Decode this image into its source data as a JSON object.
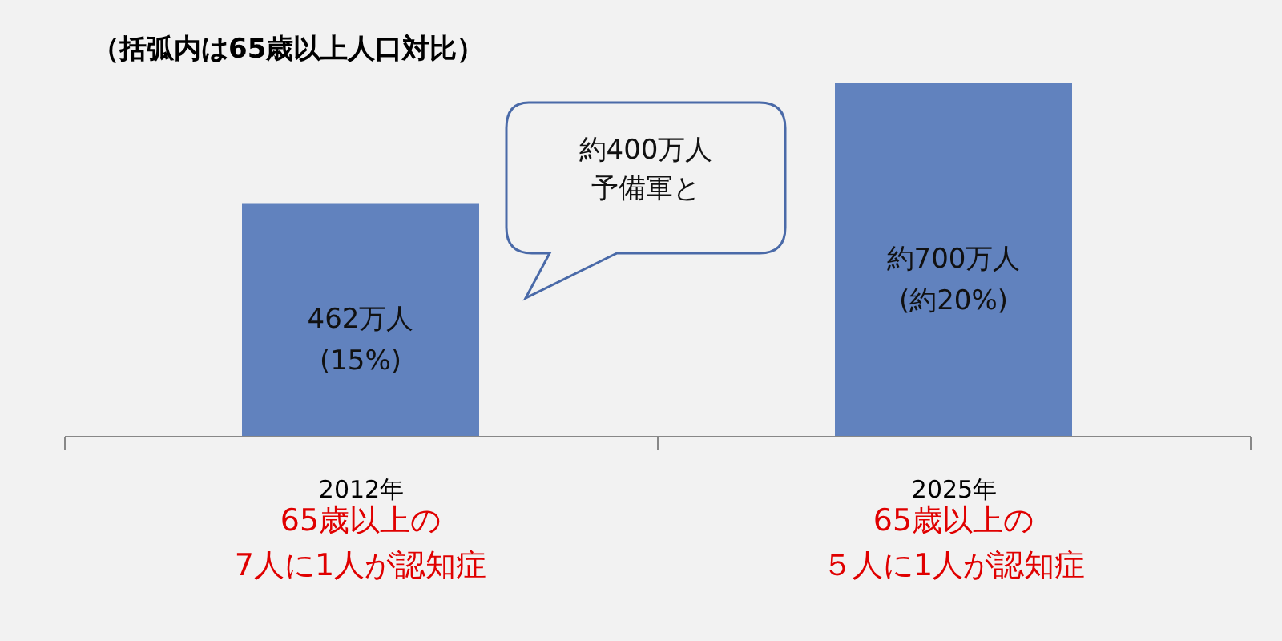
{
  "chart_data": {
    "type": "bar",
    "title": "（括弧内は65歳以上人口対比）",
    "categories": [
      "2012年",
      "2025年"
    ],
    "values": [
      462,
      700
    ],
    "color": "#6182be",
    "value_labels": [
      "462万人\n(15%)",
      "約700万人\n(約20%)"
    ],
    "grid": false,
    "annotations": [
      "約400万人",
      "予備軍と",
      "65歳以上の",
      "7人に1人が認知症",
      "65歳以上の",
      "５人に1人が認知症"
    ]
  }
}
